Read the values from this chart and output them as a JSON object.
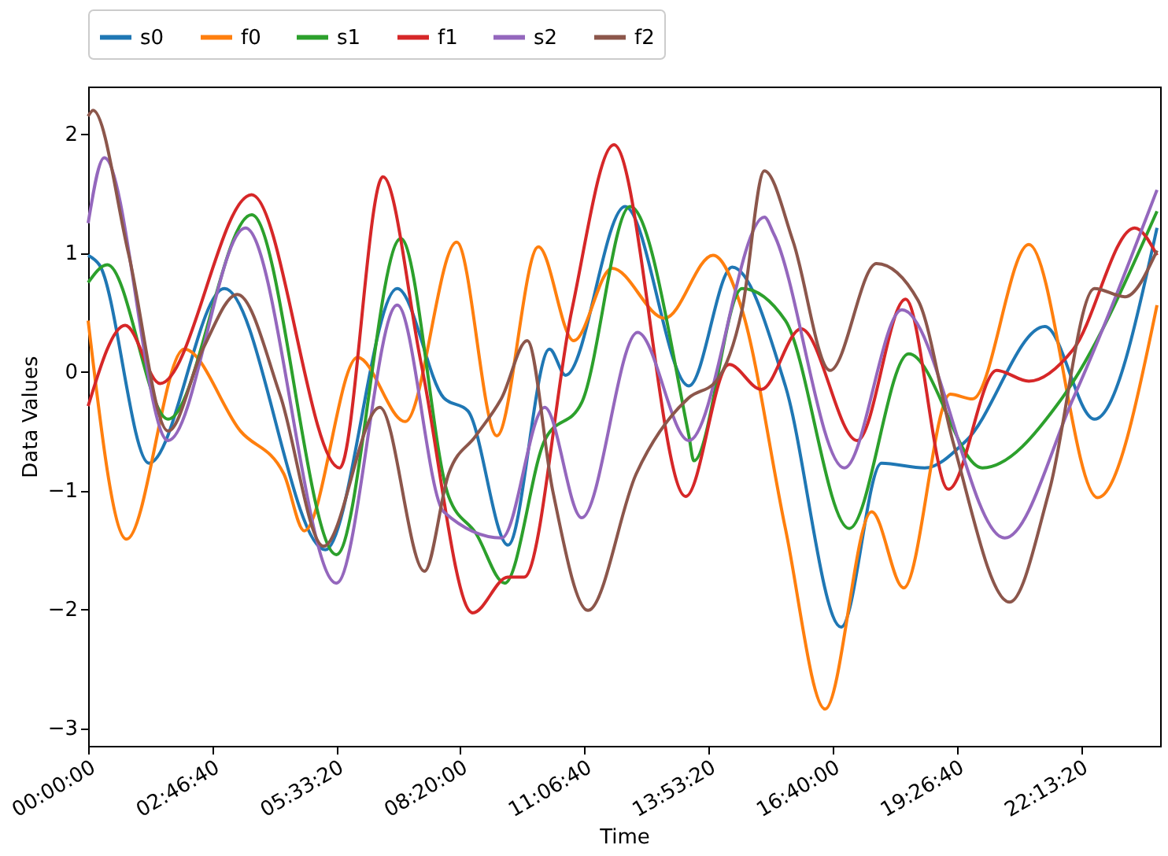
{
  "chart_data": {
    "type": "line",
    "xlabel": "Time",
    "ylabel": "Data Values",
    "xlim": [
      0,
      24
    ],
    "ylim": [
      -3.15,
      2.4
    ],
    "xticks": [
      {
        "value": 0,
        "label": "00:00:00"
      },
      {
        "value": 2.7778,
        "label": "02:46:40"
      },
      {
        "value": 5.5556,
        "label": "05:33:20"
      },
      {
        "value": 8.3333,
        "label": "08:20:00"
      },
      {
        "value": 11.1111,
        "label": "11:06:40"
      },
      {
        "value": 13.8889,
        "label": "13:53:20"
      },
      {
        "value": 16.6667,
        "label": "16:40:00"
      },
      {
        "value": 19.4444,
        "label": "19:26:40"
      },
      {
        "value": 22.2222,
        "label": "22:13:20"
      }
    ],
    "yticks": [
      -3,
      -2,
      -1,
      0,
      1,
      2
    ],
    "grid": false,
    "legend": "top",
    "marker": "none",
    "line_style": "solid",
    "series": [
      {
        "name": "s0",
        "color": "#1f77b4",
        "x": [
          0,
          0.25,
          1.36,
          3.05,
          5.31,
          6.92,
          7.96,
          8.5,
          9.4,
          10.33,
          10.69,
          12.02,
          13.45,
          14.42,
          15.61,
          16.86,
          17.76,
          18.73,
          19.66,
          21.42,
          22.53,
          23.93
        ],
        "values": [
          0.98,
          0.9,
          -0.77,
          0.7,
          -1.5,
          0.7,
          -0.22,
          -0.33,
          -1.46,
          0.19,
          -0.03,
          1.39,
          -0.12,
          0.88,
          -0.12,
          -2.15,
          -0.77,
          -0.81,
          -0.58,
          0.38,
          -0.4,
          1.21
        ]
      },
      {
        "name": "f0",
        "color": "#ff7f0e",
        "x": [
          0,
          0.86,
          2.15,
          3.41,
          4.38,
          4.84,
          6.03,
          7.1,
          8.25,
          9.15,
          10.08,
          10.87,
          11.73,
          12.91,
          13.99,
          14.64,
          15.61,
          16.5,
          17.54,
          18.26,
          19.3,
          19.8,
          21.06,
          22.6,
          23.93
        ],
        "values": [
          0.43,
          -1.41,
          0.19,
          -0.5,
          -0.86,
          -1.34,
          0.12,
          -0.42,
          1.09,
          -0.54,
          1.05,
          0.26,
          0.87,
          0.45,
          0.98,
          0.52,
          -1.32,
          -2.84,
          -1.18,
          -1.82,
          -0.19,
          -0.23,
          1.07,
          -1.06,
          0.56
        ]
      },
      {
        "name": "s1",
        "color": "#2ca02c",
        "x": [
          0,
          0.43,
          1.79,
          3.66,
          5.56,
          7.0,
          8.07,
          8.68,
          9.33,
          10.22,
          11.05,
          12.13,
          13.45,
          13.56,
          14.64,
          15.61,
          17.04,
          18.37,
          20.02,
          21.81,
          23.93
        ],
        "values": [
          0.75,
          0.9,
          -0.4,
          1.32,
          -1.54,
          1.12,
          -1.05,
          -1.36,
          -1.78,
          -0.58,
          -0.26,
          1.39,
          -0.54,
          -0.75,
          0.7,
          0.43,
          -1.32,
          0.15,
          -0.81,
          -0.22,
          1.35
        ]
      },
      {
        "name": "f1",
        "color": "#d62728",
        "x": [
          0,
          0.83,
          1.61,
          3.66,
          5.63,
          6.6,
          7.46,
          8.61,
          9.4,
          9.76,
          10.83,
          11.77,
          13.38,
          14.35,
          15.07,
          15.96,
          17.22,
          18.3,
          19.26,
          20.34,
          21.06,
          22.06,
          23.43,
          23.93
        ],
        "values": [
          -0.29,
          0.39,
          -0.1,
          1.49,
          -0.81,
          1.64,
          0.06,
          -2.03,
          -1.73,
          -1.73,
          0.52,
          1.91,
          -1.05,
          0.06,
          -0.15,
          0.36,
          -0.58,
          0.61,
          -0.99,
          0.01,
          -0.08,
          0.19,
          1.21,
          0.98
        ]
      },
      {
        "name": "s2",
        "color": "#9467bd",
        "x": [
          0,
          0.36,
          1.79,
          3.52,
          5.56,
          6.92,
          7.96,
          9.26,
          10.22,
          11.05,
          12.3,
          13.45,
          15.14,
          15.35,
          16.93,
          18.22,
          20.52,
          22.06,
          23.93
        ],
        "values": [
          1.25,
          1.8,
          -0.58,
          1.21,
          -1.78,
          0.56,
          -1.18,
          -1.4,
          -0.3,
          -1.23,
          0.33,
          -0.58,
          1.3,
          1.16,
          -0.81,
          0.52,
          -1.4,
          -0.22,
          1.53
        ]
      },
      {
        "name": "f2",
        "color": "#8c564b",
        "x": [
          0,
          0.11,
          0.9,
          1.79,
          2.58,
          3.34,
          4.3,
          5.27,
          6.53,
          7.53,
          8.07,
          8.68,
          9.26,
          9.83,
          10.4,
          11.19,
          12.27,
          13.45,
          14.06,
          14.64,
          15.14,
          15.78,
          16.61,
          17.65,
          18.58,
          19.37,
          20.63,
          21.52,
          22.53,
          23.21,
          23.93
        ],
        "values": [
          2.15,
          2.2,
          1.0,
          -0.5,
          0.2,
          0.65,
          -0.2,
          -1.47,
          -0.3,
          -1.68,
          -0.86,
          -0.54,
          -0.22,
          0.26,
          -1.0,
          -2.01,
          -0.86,
          -0.22,
          -0.08,
          0.52,
          1.69,
          1.1,
          0.01,
          0.91,
          0.6,
          -0.6,
          -1.94,
          -1.0,
          0.7,
          0.63,
          1.02
        ]
      }
    ]
  }
}
